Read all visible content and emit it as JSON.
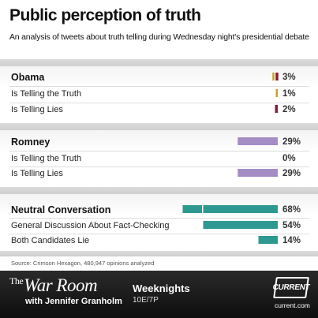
{
  "title": "Public perception of truth",
  "subtitle": "An analysis of tweets about truth telling during Wednesday night's presidential debate",
  "source": "Source: Crimson Hexagon, 480,947 opinions analyzed",
  "colors": {
    "obama": "#8b1a3a",
    "obama_truth": "#c9a227",
    "romney": "#a48cc4",
    "neutral": "#2e9990",
    "band": "#d4d4d4"
  },
  "chart_data": {
    "type": "bar",
    "orientation": "horizontal",
    "title": "Public perception of truth",
    "subtitle": "An analysis of tweets about truth telling during Wednesday night's presidential debate",
    "unit": "%",
    "groups": [
      {
        "name": "Obama",
        "total": {
          "value": 3,
          "label": "3%",
          "segments": [
            {
              "value": 1,
              "color": "#c9a227"
            },
            {
              "value": 2,
              "color": "#8b1a3a"
            }
          ]
        },
        "rows": [
          {
            "label": "Is Telling the Truth",
            "value": 1,
            "display": "1%",
            "color": "#c9a227"
          },
          {
            "label": "Is Telling Lies",
            "value": 2,
            "display": "2%",
            "color": "#8b1a3a"
          }
        ]
      },
      {
        "name": "Romney",
        "total": {
          "value": 29,
          "label": "29%",
          "segments": [
            {
              "value": 29,
              "color": "#a48cc4"
            }
          ]
        },
        "rows": [
          {
            "label": "Is Telling the Truth",
            "value": 0,
            "display": "0%",
            "color": "#a48cc4"
          },
          {
            "label": "Is Telling Lies",
            "value": 29,
            "display": "29%",
            "color": "#a48cc4"
          }
        ]
      },
      {
        "name": "Neutral Conversation",
        "total": {
          "value": 68,
          "label": "68%",
          "segments": [
            {
              "value": 14,
              "color": "#2e9990"
            },
            {
              "value": 54,
              "color": "#2e9990"
            }
          ]
        },
        "rows": [
          {
            "label": "General Discussion About Fact-Checking",
            "value": 54,
            "display": "54%",
            "color": "#2e9990"
          },
          {
            "label": "Both Candidates Lie",
            "value": 14,
            "display": "14%",
            "color": "#2e9990"
          }
        ]
      }
    ]
  },
  "footer": {
    "show_the": "The",
    "show_name": "War Room",
    "host": "with Jennifer Granholm",
    "schedule": "Weeknights",
    "time": "10E/7P",
    "brand": "CURRENT",
    "brand_url": "current.com"
  }
}
